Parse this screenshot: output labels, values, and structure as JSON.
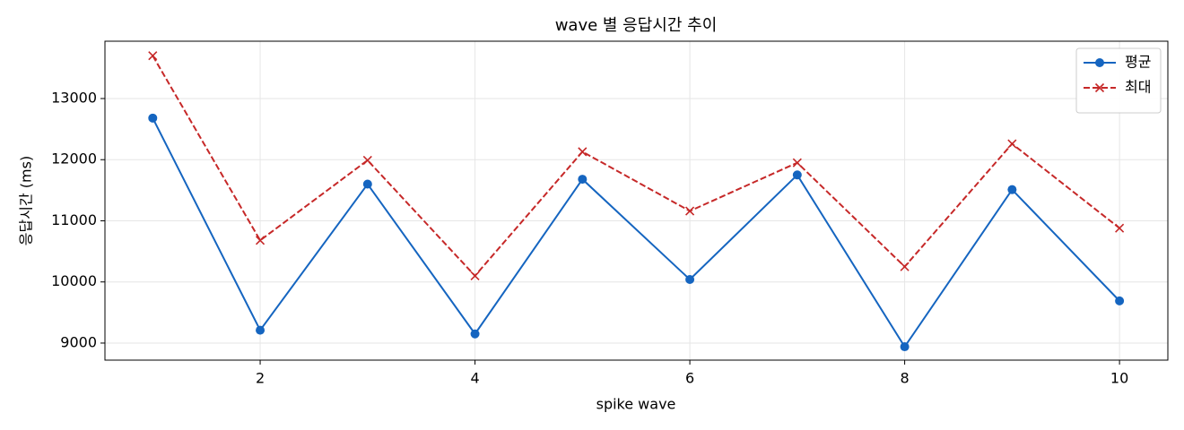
{
  "chart_data": {
    "type": "line",
    "title": "wave 별 응답시간 추이",
    "xlabel": "spike wave",
    "ylabel": "응답시간 (ms)",
    "x": [
      1,
      2,
      3,
      4,
      5,
      6,
      7,
      8,
      9,
      10
    ],
    "series": [
      {
        "name": "평균",
        "color": "#1565c0",
        "marker": "o",
        "linestyle": "solid",
        "values": [
          12680,
          9210,
          11600,
          9150,
          11680,
          10040,
          11750,
          8940,
          11510,
          9690
        ]
      },
      {
        "name": "최대",
        "color": "#c62828",
        "marker": "x",
        "linestyle": "dashed",
        "values": [
          13700,
          10680,
          11990,
          10100,
          12130,
          11160,
          11950,
          10250,
          12260,
          10880
        ]
      }
    ],
    "xlim": [
      0.555,
      10.45
    ],
    "xticks": [
      2,
      4,
      6,
      8,
      10
    ],
    "ylim": [
      8721,
      13938
    ],
    "yticks": [
      9000,
      10000,
      11000,
      12000,
      13000
    ],
    "grid": true,
    "legend": "upper right"
  }
}
